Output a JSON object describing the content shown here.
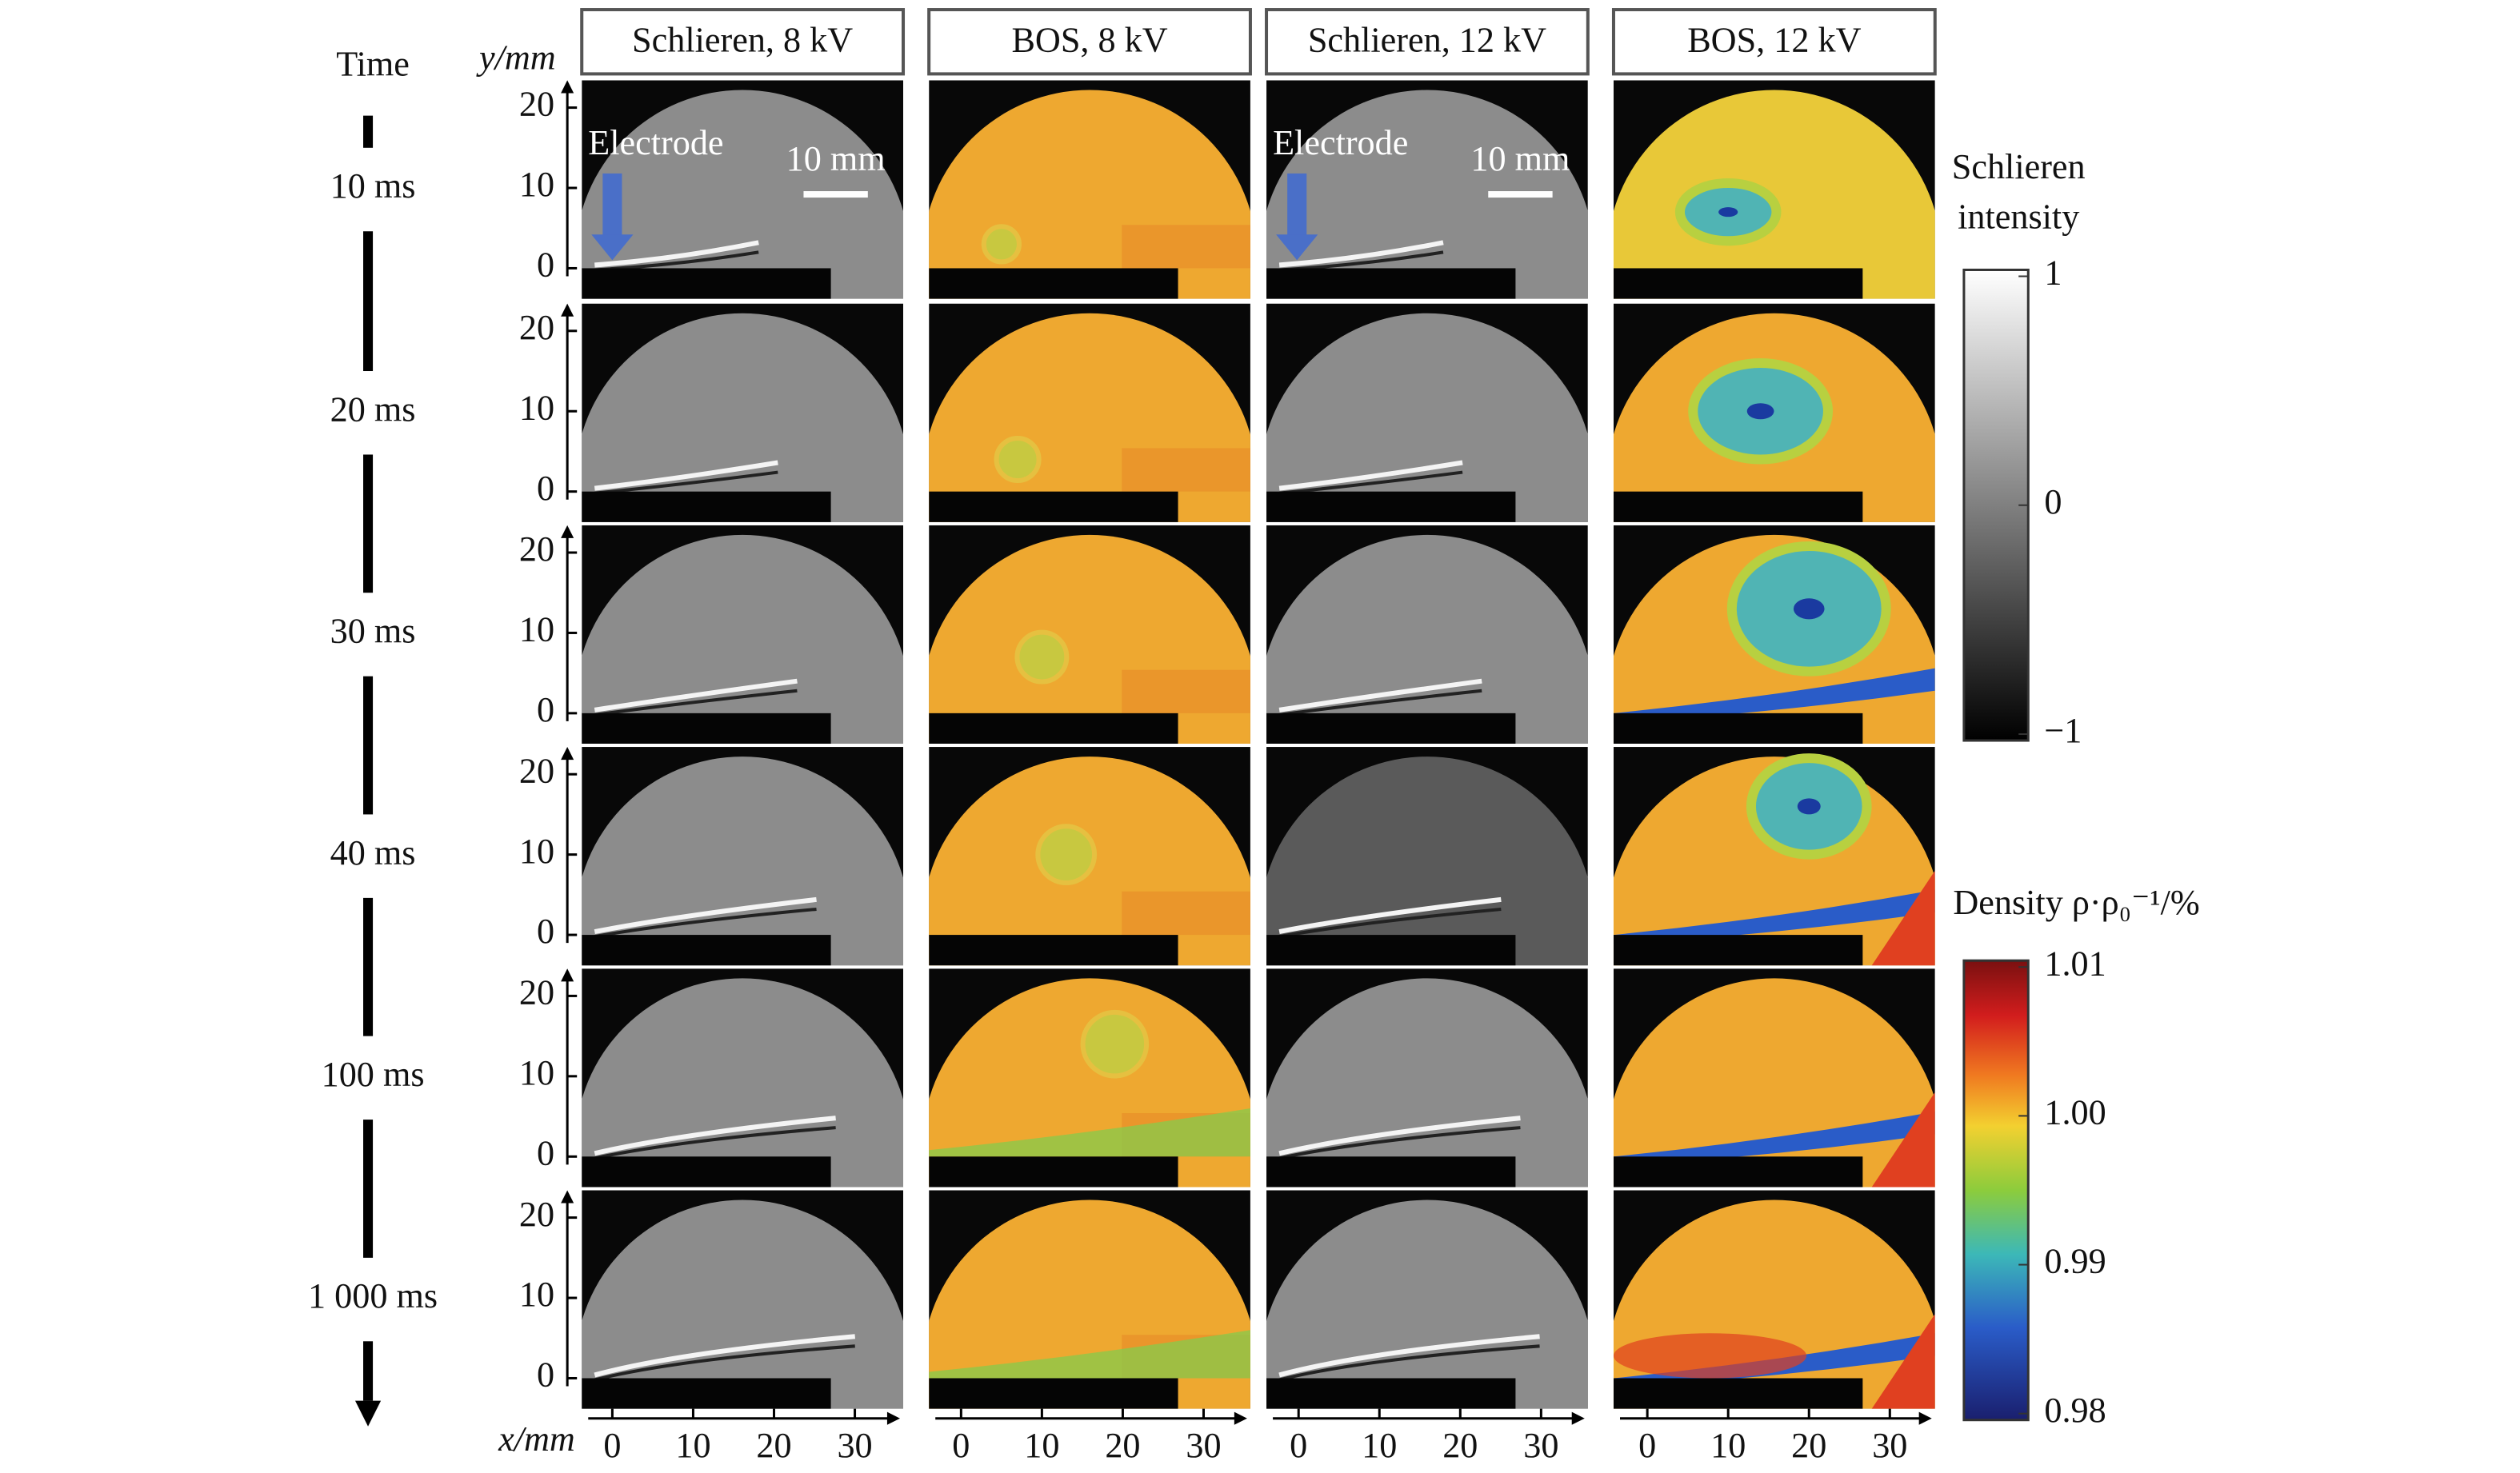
{
  "figure": {
    "time_label": "Time",
    "y_axis_label": "y/mm",
    "x_axis_label": "x/mm",
    "columns": [
      "Schlieren, 8 kV",
      "BOS, 8 kV",
      "Schlieren, 12 kV",
      "BOS, 12 kV"
    ],
    "rows": [
      "10 ms",
      "20 ms",
      "30 ms",
      "40 ms",
      "100 ms",
      "1 000 ms"
    ],
    "yticks": [
      0,
      10,
      20
    ],
    "xticks": [
      0,
      10,
      20,
      30
    ],
    "annotations": {
      "electrode": "Electrode",
      "scale_bar": "10 mm"
    },
    "colorbars": [
      {
        "title": [
          "Schlieren",
          "intensity"
        ],
        "ticks": [
          1,
          0,
          {
            "value": -1,
            "label": "−1"
          }
        ]
      },
      {
        "title": "Density ρ·ρ₀⁻¹/%",
        "ticks": [
          1.01,
          {
            "value": 1.0,
            "label": "1.00"
          },
          0.99,
          0.98
        ]
      }
    ]
  }
}
